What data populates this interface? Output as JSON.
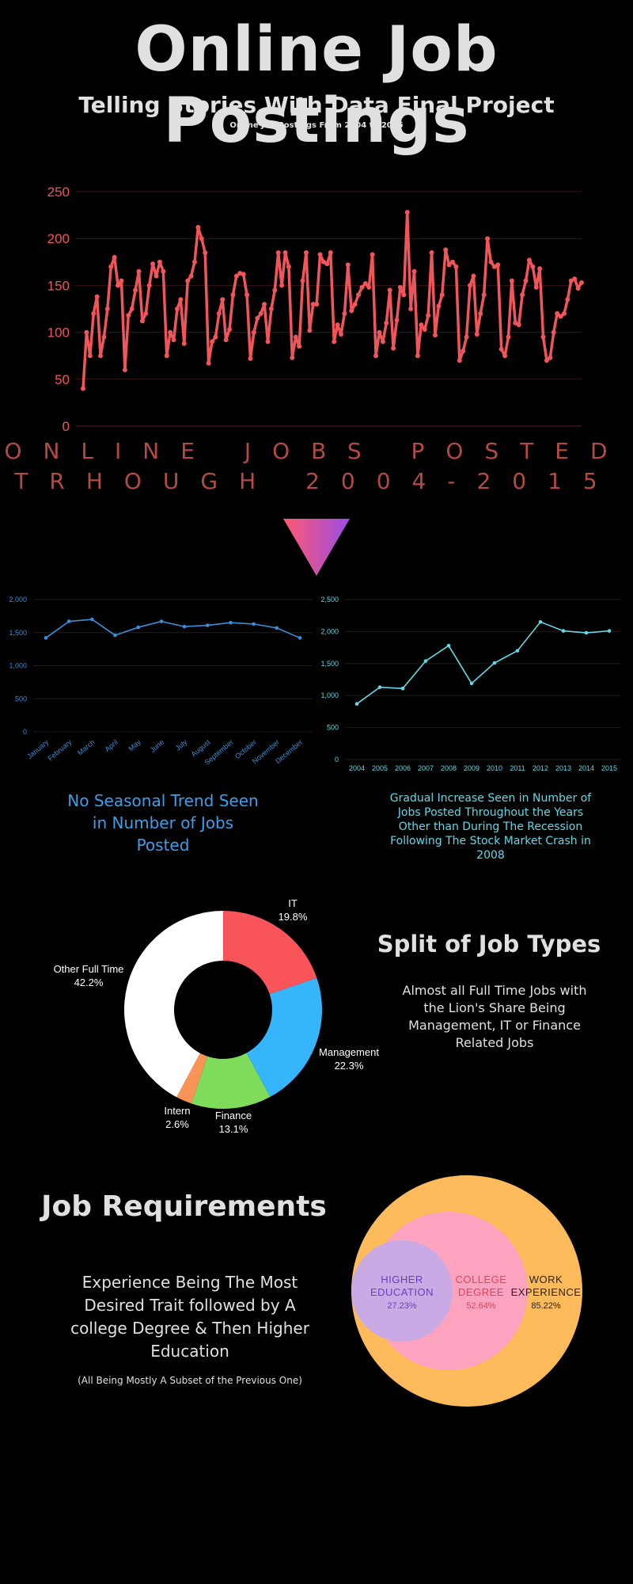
{
  "header": {
    "title": "Online Job Postings",
    "subtitle": "Telling Stories With Data Final Project",
    "caption": "Online Job Postings From 2004 to 2015"
  },
  "colors": {
    "background": "#000000",
    "line_red": "#f0555a",
    "line_blue": "#3a8fd8",
    "line_cyan": "#62d8e4",
    "title_red": "#b34a44"
  },
  "chart_data": [
    {
      "type": "line",
      "title_lines": [
        "ONLINE JOBS POSTED",
        "TRHOUGH 2004-2015"
      ],
      "ylim": [
        0,
        250
      ],
      "yticks": [
        0,
        50,
        100,
        150,
        200,
        250
      ],
      "grid": true,
      "values": [
        40,
        100,
        75,
        120,
        138,
        75,
        95,
        125,
        170,
        180,
        150,
        155,
        60,
        118,
        125,
        145,
        165,
        112,
        120,
        150,
        173,
        160,
        175,
        165,
        75,
        100,
        92,
        125,
        135,
        88,
        155,
        160,
        175,
        212,
        200,
        185,
        67,
        90,
        95,
        120,
        135,
        92,
        103,
        140,
        160,
        163,
        162,
        140,
        72,
        100,
        115,
        120,
        130,
        90,
        125,
        145,
        185,
        150,
        185,
        170,
        73,
        95,
        85,
        155,
        185,
        102,
        130,
        130,
        183,
        175,
        173,
        185,
        90,
        108,
        98,
        120,
        172,
        123,
        130,
        140,
        148,
        152,
        148,
        183,
        75,
        100,
        90,
        110,
        145,
        83,
        113,
        148,
        140,
        228,
        125,
        165,
        75,
        108,
        103,
        118,
        185,
        97,
        128,
        140,
        188,
        172,
        175,
        170,
        70,
        80,
        95,
        150,
        160,
        98,
        120,
        140,
        200,
        175,
        170,
        172,
        82,
        75,
        95,
        155,
        110,
        108,
        140,
        155,
        177,
        170,
        148,
        168,
        95,
        70,
        73,
        100,
        120,
        117,
        120,
        135,
        155,
        157,
        147,
        153
      ]
    },
    {
      "type": "line",
      "categories": [
        "January",
        "February",
        "March",
        "April",
        "May",
        "June",
        "July",
        "August",
        "September",
        "October",
        "November",
        "December"
      ],
      "values": [
        1420,
        1670,
        1700,
        1460,
        1580,
        1670,
        1590,
        1610,
        1650,
        1630,
        1570,
        1420
      ],
      "ylim": [
        0,
        2000
      ],
      "yticks": [
        0,
        500,
        1000,
        1500,
        2000
      ],
      "ytick_labels": [
        "0",
        "500",
        "1,000",
        "1,500",
        "2,000"
      ],
      "grid": true
    },
    {
      "type": "line",
      "categories": [
        "2004",
        "2005",
        "2006",
        "2007",
        "2008",
        "2009",
        "2010",
        "2011",
        "2012",
        "2013",
        "2014",
        "2015"
      ],
      "values": [
        870,
        1130,
        1110,
        1540,
        1780,
        1190,
        1510,
        1700,
        2150,
        2010,
        1980,
        2010
      ],
      "ylim": [
        0,
        2500
      ],
      "yticks": [
        0,
        500,
        1000,
        1500,
        2000,
        2500
      ],
      "ytick_labels": [
        "0",
        "500",
        "1,000",
        "1,500",
        "2,000",
        "2,500"
      ],
      "grid": true
    },
    {
      "type": "pie",
      "donut": true,
      "slices": [
        {
          "label": "IT",
          "value": 19.8,
          "pct": "19.8%",
          "color": "#f9545a"
        },
        {
          "label": "Management",
          "value": 22.3,
          "pct": "22.3%",
          "color": "#36b4fc"
        },
        {
          "label": "Finance",
          "value": 13.1,
          "pct": "13.1%",
          "color": "#7fdc5a"
        },
        {
          "label": "Intern",
          "value": 2.6,
          "pct": "2.6%",
          "color": "#fa9456"
        },
        {
          "label": "Other Full Time",
          "value": 42.2,
          "pct": "42.2%",
          "color": "#ffffff"
        }
      ]
    }
  ],
  "notes": {
    "seasonal": [
      "No Seasonal Trend Seen",
      "in Number of Jobs",
      "Posted"
    ],
    "yearly": [
      "Gradual Increase Seen in Number of",
      "Jobs Posted Throughout the Years",
      "Other than During The Recession",
      "Following The Stock Market Crash in",
      "2008"
    ]
  },
  "job_types": {
    "heading": "Split of  Job Types",
    "text": [
      "Almost all Full Time Jobs with",
      "the Lion's Share Being",
      "Management, IT or Finance",
      "Related Jobs"
    ]
  },
  "requirements": {
    "heading": "Job Requirements",
    "text": [
      "Experience Being The Most",
      "Desired Trait followed by A",
      "college Degree & Then Higher",
      "Education"
    ],
    "footnote": "(All Being Mostly A Subset of the Previous One)",
    "circles": [
      {
        "label_lines": [
          "WORK",
          "EXPERIENCE"
        ],
        "pct": "85.22%",
        "color": "#fdbb5c",
        "text_color": "#222222"
      },
      {
        "label_lines": [
          "COLLEGE",
          "DEGREE"
        ],
        "pct": "52.64%",
        "color": "#fca3bf",
        "text_color": "#e0435c"
      },
      {
        "label_lines": [
          "HIGHER",
          "EDUCATION"
        ],
        "pct": "27.23%",
        "color": "#c9aae4",
        "text_color": "#6a3fc8"
      }
    ]
  }
}
